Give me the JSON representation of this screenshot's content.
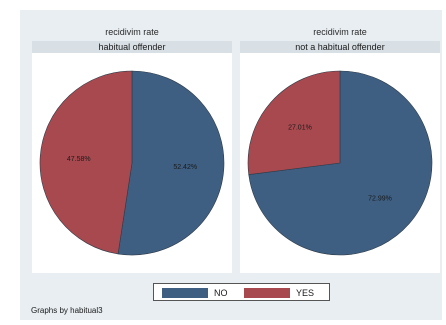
{
  "colors": {
    "no": "#3e5f82",
    "yes": "#a8494f"
  },
  "chart_data": [
    {
      "type": "pie",
      "title": "recidivim rate",
      "subtitle": "habitual offender",
      "slices": [
        {
          "label": "NO",
          "value": 52.42,
          "text": "52.42%"
        },
        {
          "label": "YES",
          "value": 47.58,
          "text": "47.58%"
        }
      ]
    },
    {
      "type": "pie",
      "title": "recidivim rate",
      "subtitle": "not a habitual offender",
      "slices": [
        {
          "label": "NO",
          "value": 72.99,
          "text": "72.99%"
        },
        {
          "label": "YES",
          "value": 27.01,
          "text": "27.01%"
        }
      ]
    }
  ],
  "legend": {
    "placement": "bottom",
    "items": [
      {
        "label": "NO"
      },
      {
        "label": "YES"
      }
    ]
  },
  "footnote": "Graphs by habitual3"
}
